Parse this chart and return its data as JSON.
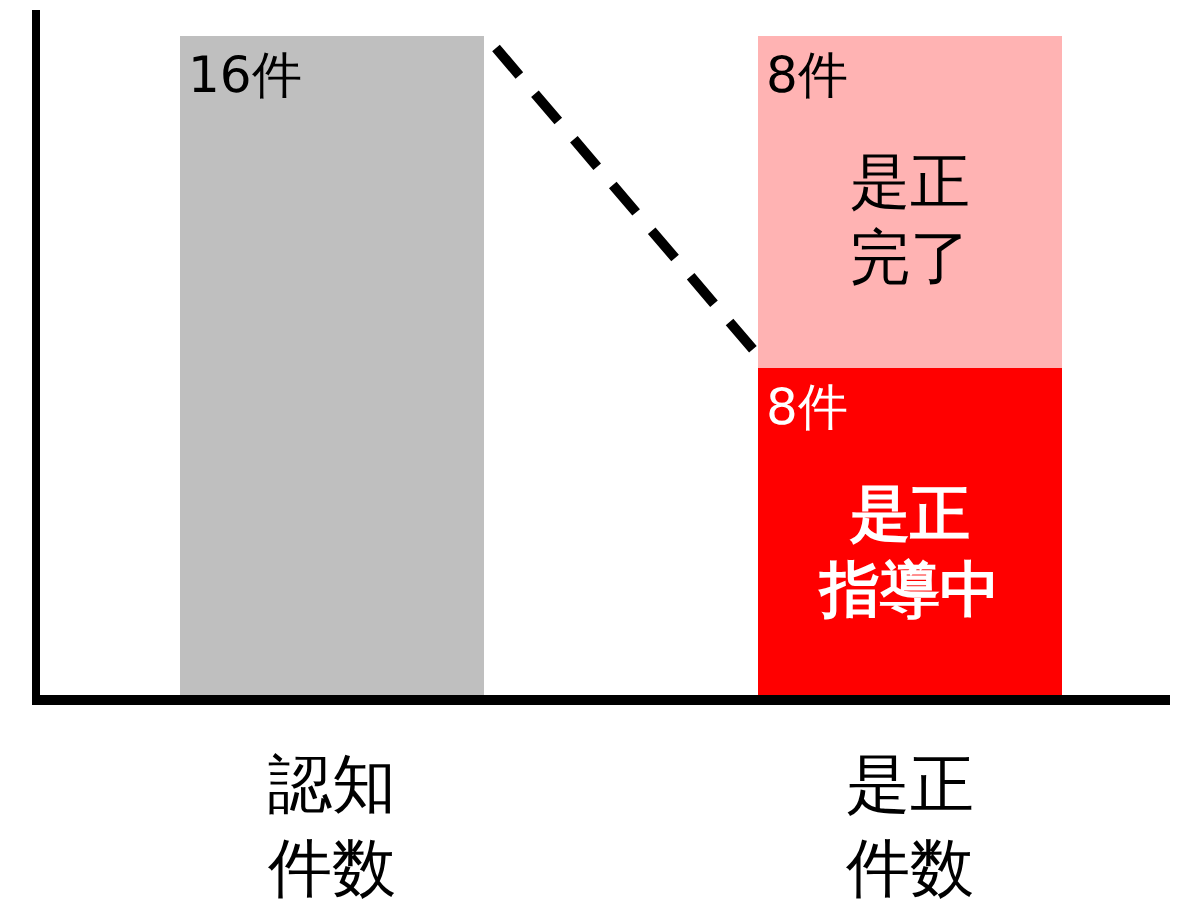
{
  "chart_data": {
    "type": "bar",
    "stacked": true,
    "categories": [
      "認知件数",
      "是正件数"
    ],
    "series": [
      {
        "color": "#bfbfbf",
        "values": [
          16,
          null
        ],
        "value_labels": [
          "16件",
          null
        ]
      },
      {
        "name": "是正指導中",
        "color": "#ff0000",
        "values": [
          null,
          8
        ],
        "value_labels": [
          null,
          "8件"
        ]
      },
      {
        "name": "是正完了",
        "color": "#ffb3b3",
        "values": [
          null,
          8
        ],
        "value_labels": [
          null,
          "8件"
        ]
      }
    ]
  }
}
